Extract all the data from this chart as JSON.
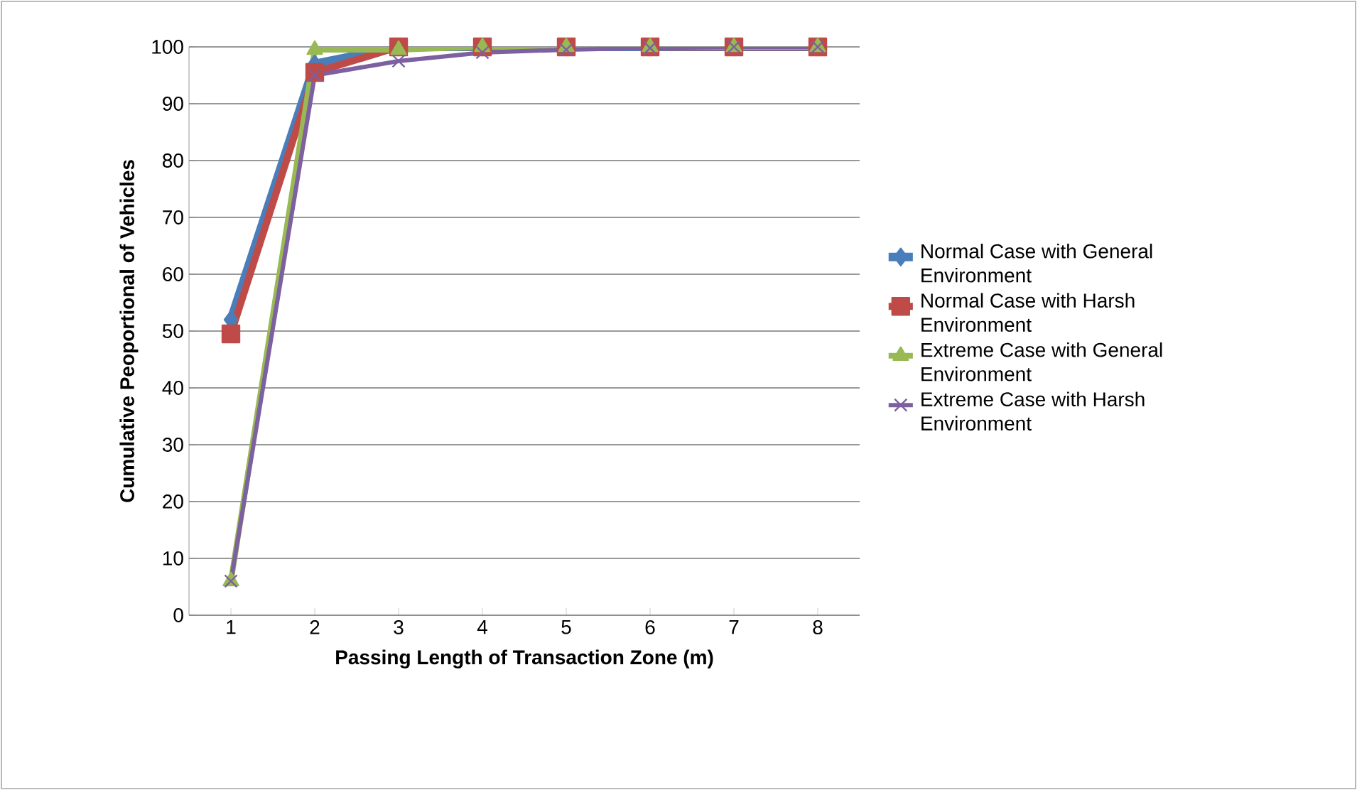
{
  "chart_data": {
    "type": "line",
    "xlabel": "Passing Length of Transaction Zone (m)",
    "ylabel": "Cumulative Peoportional of Vehicles",
    "categories": [
      "1",
      "2",
      "3",
      "4",
      "5",
      "6",
      "7",
      "8"
    ],
    "ylim": [
      0,
      100
    ],
    "yticks": [
      0,
      10,
      20,
      30,
      40,
      50,
      60,
      70,
      80,
      90,
      100
    ],
    "grid": "y",
    "legend": "right",
    "series": [
      {
        "name": "Normal Case with General Environment",
        "color": "#4a7ebb",
        "marker": "diamond",
        "values": [
          52,
          97,
          100,
          100,
          100,
          100,
          100,
          100
        ]
      },
      {
        "name": "Normal Case with Harsh Environment",
        "color": "#be4b48",
        "marker": "square",
        "values": [
          49.5,
          95.5,
          100,
          100,
          100,
          100,
          100,
          100
        ]
      },
      {
        "name": "Extreme Case with General Environment",
        "color": "#98b954",
        "marker": "triangle",
        "values": [
          6,
          99.5,
          99.5,
          100,
          100,
          100,
          100,
          100
        ]
      },
      {
        "name": "Extreme Case with Harsh Environment",
        "color": "#7d60a0",
        "marker": "cross",
        "values": [
          6,
          95,
          97.5,
          99,
          99.5,
          99.8,
          100,
          100
        ]
      }
    ]
  }
}
